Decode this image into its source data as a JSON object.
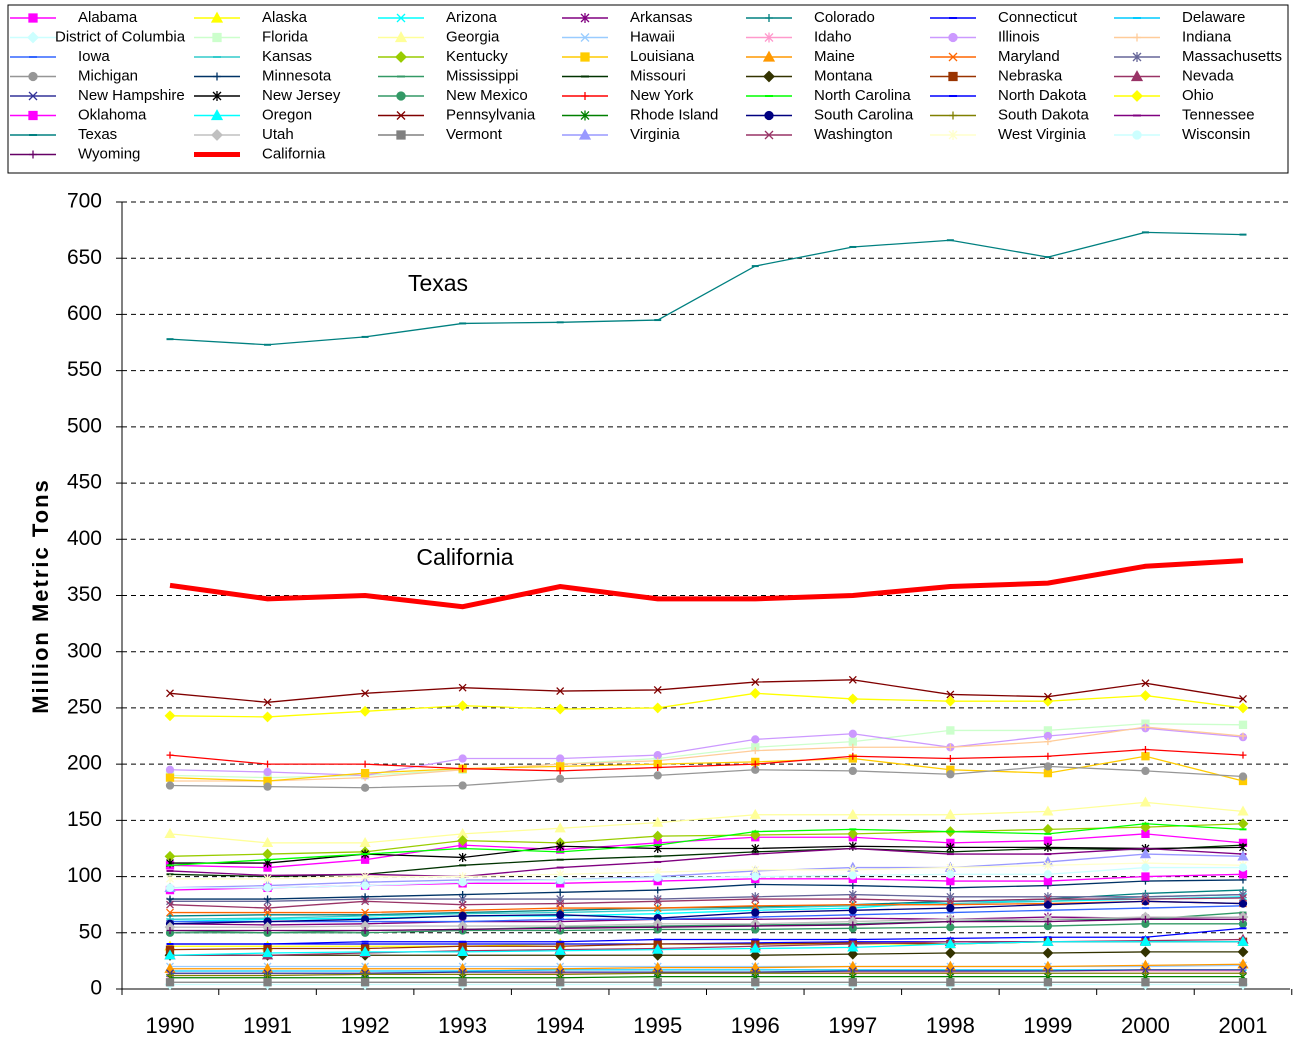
{
  "chart_data": {
    "type": "line",
    "y_label": "Million Metric Tons",
    "annotations": [
      "Texas",
      "California"
    ],
    "categories": [
      "1990",
      "1991",
      "1992",
      "1993",
      "1994",
      "1995",
      "1996",
      "1997",
      "1998",
      "1999",
      "2000",
      "2001"
    ],
    "ylim": [
      0,
      700
    ],
    "yticks": [
      0,
      50,
      100,
      150,
      200,
      250,
      300,
      350,
      400,
      450,
      500,
      550,
      600,
      650,
      700
    ],
    "grid": true,
    "series": [
      {
        "name": "Alabama",
        "color": "#ff00ff",
        "marker": "square",
        "values": [
          110,
          108,
          115,
          128,
          124,
          130,
          135,
          135,
          130,
          132,
          138,
          130
        ]
      },
      {
        "name": "Alaska",
        "color": "#ffff00",
        "marker": "triangle",
        "values": [
          38,
          38,
          38,
          38,
          40,
          40,
          40,
          40,
          40,
          42,
          42,
          42
        ]
      },
      {
        "name": "Arizona",
        "color": "#00ffff",
        "marker": "x",
        "values": [
          60,
          62,
          63,
          65,
          65,
          67,
          70,
          72,
          78,
          78,
          80,
          82
        ]
      },
      {
        "name": "Arkansas",
        "color": "#800080",
        "marker": "star",
        "values": [
          58,
          57,
          58,
          60,
          60,
          62,
          62,
          63,
          62,
          64,
          63,
          64
        ]
      },
      {
        "name": "Colorado",
        "color": "#008080",
        "marker": "plus",
        "values": [
          65,
          66,
          66,
          68,
          70,
          72,
          73,
          75,
          78,
          80,
          85,
          88
        ]
      },
      {
        "name": "Connecticut",
        "color": "#0000ff",
        "marker": "dash",
        "values": [
          40,
          40,
          40,
          40,
          40,
          40,
          41,
          42,
          42,
          42,
          42,
          42
        ]
      },
      {
        "name": "Delaware",
        "color": "#00ccff",
        "marker": "dash",
        "values": [
          16,
          16,
          16,
          16,
          17,
          17,
          17,
          17,
          17,
          17,
          17,
          17
        ]
      },
      {
        "name": "District of Columbia",
        "color": "#ccffff",
        "marker": "diamond",
        "values": [
          4,
          4,
          4,
          4,
          4,
          4,
          4,
          4,
          4,
          4,
          4,
          4
        ]
      },
      {
        "name": "Florida",
        "color": "#ccffcc",
        "marker": "square",
        "values": [
          190,
          188,
          190,
          195,
          200,
          205,
          215,
          220,
          230,
          230,
          236,
          235
        ]
      },
      {
        "name": "Georgia",
        "color": "#ffff99",
        "marker": "triangle",
        "values": [
          138,
          130,
          130,
          138,
          143,
          148,
          155,
          155,
          155,
          158,
          166,
          158
        ]
      },
      {
        "name": "Hawaii",
        "color": "#99ccff",
        "marker": "x",
        "values": [
          20,
          20,
          20,
          20,
          20,
          20,
          20,
          20,
          20,
          20,
          20,
          21
        ]
      },
      {
        "name": "Idaho",
        "color": "#ff99cc",
        "marker": "star",
        "values": [
          12,
          12,
          13,
          13,
          14,
          14,
          15,
          15,
          15,
          16,
          16,
          16
        ]
      },
      {
        "name": "Illinois",
        "color": "#cc99ff",
        "marker": "circle",
        "values": [
          195,
          193,
          190,
          205,
          205,
          208,
          222,
          227,
          215,
          225,
          232,
          224
        ]
      },
      {
        "name": "Indiana",
        "color": "#ffcc99",
        "marker": "plus",
        "values": [
          185,
          185,
          188,
          195,
          200,
          203,
          212,
          215,
          215,
          220,
          233,
          225
        ]
      },
      {
        "name": "Iowa",
        "color": "#3366ff",
        "marker": "dash",
        "values": [
          60,
          60,
          60,
          60,
          62,
          62,
          64,
          66,
          68,
          70,
          72,
          74
        ]
      },
      {
        "name": "Kansas",
        "color": "#33cccc",
        "marker": "dash",
        "values": [
          62,
          63,
          65,
          67,
          68,
          70,
          72,
          74,
          76,
          78,
          82,
          84
        ]
      },
      {
        "name": "Kentucky",
        "color": "#99cc00",
        "marker": "diamond",
        "values": [
          118,
          120,
          122,
          132,
          130,
          136,
          137,
          138,
          140,
          142,
          144,
          147
        ]
      },
      {
        "name": "Louisiana",
        "color": "#ffcc00",
        "marker": "square",
        "values": [
          188,
          185,
          192,
          196,
          198,
          200,
          202,
          205,
          195,
          192,
          207,
          185
        ]
      },
      {
        "name": "Maine",
        "color": "#ff9900",
        "marker": "triangle",
        "values": [
          18,
          18,
          18,
          18,
          18,
          19,
          19,
          20,
          20,
          20,
          21,
          22
        ]
      },
      {
        "name": "Maryland",
        "color": "#ff6600",
        "marker": "x",
        "values": [
          68,
          68,
          68,
          70,
          72,
          72,
          74,
          75,
          75,
          76,
          78,
          76
        ]
      },
      {
        "name": "Massachusetts",
        "color": "#666699",
        "marker": "star",
        "values": [
          78,
          78,
          80,
          80,
          80,
          80,
          82,
          84,
          82,
          82,
          82,
          84
        ]
      },
      {
        "name": "Michigan",
        "color": "#969696",
        "marker": "circle",
        "values": [
          181,
          180,
          179,
          181,
          187,
          190,
          195,
          194,
          191,
          198,
          194,
          189
        ]
      },
      {
        "name": "Minnesota",
        "color": "#003366",
        "marker": "plus",
        "values": [
          80,
          80,
          82,
          84,
          86,
          88,
          93,
          92,
          90,
          92,
          96,
          97
        ]
      },
      {
        "name": "Mississippi",
        "color": "#339966",
        "marker": "dash",
        "values": [
          52,
          50,
          52,
          53,
          55,
          56,
          57,
          58,
          60,
          62,
          62,
          68
        ]
      },
      {
        "name": "Missouri",
        "color": "#003300",
        "marker": "dash",
        "values": [
          102,
          100,
          102,
          110,
          115,
          118,
          122,
          125,
          122,
          125,
          124,
          128
        ]
      },
      {
        "name": "Montana",
        "color": "#333300",
        "marker": "diamond",
        "values": [
          30,
          30,
          30,
          30,
          30,
          30,
          30,
          31,
          32,
          32,
          33,
          33
        ]
      },
      {
        "name": "Nebraska",
        "color": "#993300",
        "marker": "square",
        "values": [
          35,
          36,
          36,
          38,
          38,
          40,
          40,
          41,
          40,
          42,
          42,
          42
        ]
      },
      {
        "name": "Nevada",
        "color": "#993366",
        "marker": "triangle",
        "values": [
          30,
          30,
          32,
          34,
          35,
          36,
          38,
          40,
          42,
          42,
          43,
          44
        ]
      },
      {
        "name": "New Hampshire",
        "color": "#333399",
        "marker": "x",
        "values": [
          14,
          14,
          14,
          15,
          15,
          15,
          15,
          16,
          16,
          16,
          17,
          17
        ]
      },
      {
        "name": "New Jersey",
        "color": "#000000",
        "marker": "star",
        "values": [
          112,
          112,
          120,
          117,
          127,
          125,
          125,
          127,
          126,
          126,
          125,
          126
        ]
      },
      {
        "name": "New Mexico",
        "color": "#339966",
        "marker": "circle",
        "values": [
          50,
          50,
          50,
          52,
          52,
          53,
          53,
          54,
          55,
          56,
          58,
          58
        ]
      },
      {
        "name": "New York",
        "color": "#ff0000",
        "marker": "plus",
        "values": [
          208,
          200,
          200,
          196,
          194,
          197,
          200,
          207,
          205,
          207,
          213,
          208
        ]
      },
      {
        "name": "North Carolina",
        "color": "#00ff00",
        "marker": "dash",
        "values": [
          110,
          115,
          120,
          125,
          122,
          128,
          140,
          142,
          140,
          138,
          147,
          142
        ]
      },
      {
        "name": "North Dakota",
        "color": "#0000ff",
        "marker": "dash",
        "values": [
          40,
          40,
          42,
          42,
          42,
          44,
          44,
          44,
          45,
          46,
          46,
          54
        ]
      },
      {
        "name": "Ohio",
        "color": "#ffff00",
        "marker": "diamond",
        "values": [
          243,
          242,
          247,
          252,
          249,
          250,
          263,
          258,
          256,
          256,
          261,
          250
        ]
      },
      {
        "name": "Oklahoma",
        "color": "#ff00ff",
        "marker": "square",
        "values": [
          88,
          90,
          92,
          94,
          94,
          96,
          98,
          98,
          96,
          96,
          100,
          102
        ]
      },
      {
        "name": "Oregon",
        "color": "#00ffff",
        "marker": "triangle",
        "values": [
          30,
          32,
          33,
          33,
          34,
          35,
          36,
          37,
          40,
          42,
          42,
          42
        ]
      },
      {
        "name": "Pennsylvania",
        "color": "#800000",
        "marker": "x",
        "values": [
          263,
          255,
          263,
          268,
          265,
          266,
          273,
          275,
          262,
          260,
          272,
          258
        ]
      },
      {
        "name": "Rhode Island",
        "color": "#008000",
        "marker": "star",
        "values": [
          10,
          10,
          10,
          10,
          10,
          11,
          11,
          11,
          11,
          11,
          11,
          11
        ]
      },
      {
        "name": "South Carolina",
        "color": "#000080",
        "marker": "circle",
        "values": [
          58,
          60,
          62,
          65,
          66,
          63,
          68,
          70,
          72,
          75,
          78,
          76
        ]
      },
      {
        "name": "South Dakota",
        "color": "#808000",
        "marker": "plus",
        "values": [
          12,
          12,
          13,
          13,
          13,
          14,
          14,
          14,
          14,
          14,
          14,
          14
        ]
      },
      {
        "name": "Tennessee",
        "color": "#800080",
        "marker": "dash",
        "values": [
          105,
          101,
          102,
          100,
          108,
          113,
          120,
          125,
          120,
          120,
          125,
          120
        ]
      },
      {
        "name": "Texas",
        "color": "#008080",
        "marker": "dash",
        "values": [
          578,
          573,
          580,
          592,
          593,
          595,
          643,
          660,
          666,
          651,
          673,
          671
        ]
      },
      {
        "name": "Utah",
        "color": "#c0c0c0",
        "marker": "diamond",
        "values": [
          55,
          55,
          56,
          56,
          56,
          58,
          58,
          60,
          62,
          62,
          64,
          64
        ]
      },
      {
        "name": "Vermont",
        "color": "#808080",
        "marker": "square",
        "values": [
          6,
          6,
          6,
          6,
          6,
          6,
          6,
          6,
          6,
          6,
          6,
          6
        ]
      },
      {
        "name": "Virginia",
        "color": "#9999ff",
        "marker": "triangle",
        "values": [
          90,
          92,
          95,
          97,
          97,
          100,
          105,
          108,
          108,
          113,
          120,
          118
        ]
      },
      {
        "name": "Washington",
        "color": "#993366",
        "marker": "x",
        "values": [
          75,
          72,
          78,
          75,
          76,
          78,
          80,
          80,
          78,
          80,
          80,
          81
        ]
      },
      {
        "name": "West Virginia",
        "color": "#ffffcc",
        "marker": "star",
        "values": [
          98,
          98,
          100,
          100,
          102,
          104,
          106,
          106,
          108,
          110,
          112,
          110
        ]
      },
      {
        "name": "Wisconsin",
        "color": "#ccffff",
        "marker": "circle",
        "values": [
          90,
          90,
          92,
          95,
          97,
          99,
          100,
          101,
          102,
          102,
          108,
          108
        ]
      },
      {
        "name": "Wyoming",
        "color": "#660066",
        "marker": "plus",
        "values": [
          52,
          52,
          52,
          53,
          54,
          55,
          56,
          57,
          60,
          60,
          62,
          62
        ]
      },
      {
        "name": "California",
        "color": "#ff0000",
        "marker": "none",
        "width": 5,
        "values": [
          359,
          347,
          350,
          340,
          358,
          347,
          347,
          350,
          358,
          361,
          376,
          381
        ]
      }
    ]
  }
}
